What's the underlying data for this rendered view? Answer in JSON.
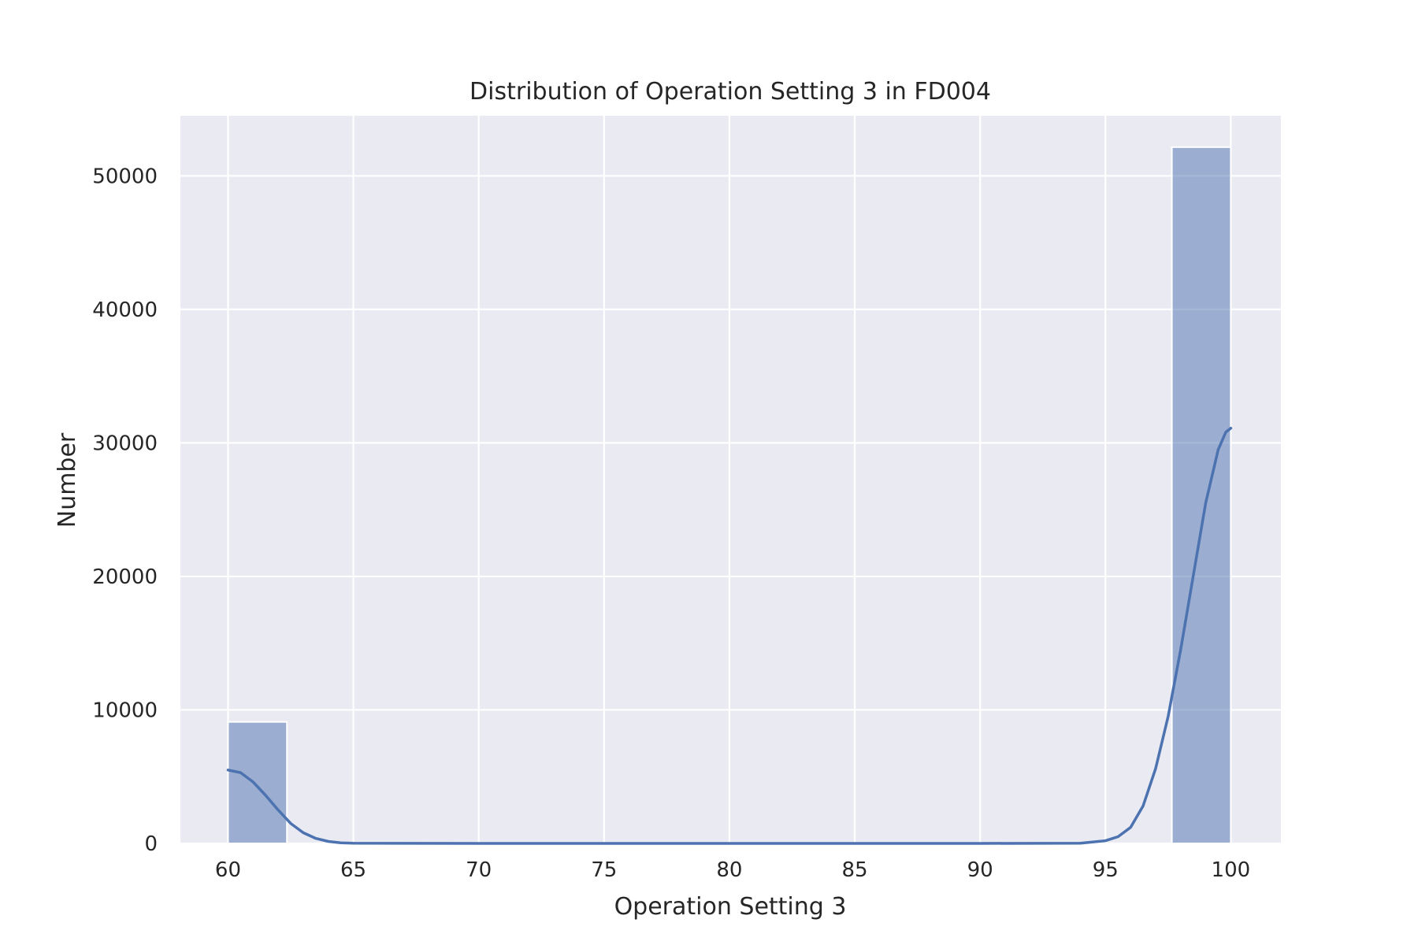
{
  "chart_data": {
    "type": "bar",
    "title": "Distribution of Operation Setting 3 in FD004",
    "xlabel": "Operation Setting 3",
    "ylabel": "Number",
    "xlim": [
      58.1,
      102.0
    ],
    "ylim": [
      0,
      54500
    ],
    "xticks": [
      60,
      65,
      70,
      75,
      80,
      85,
      90,
      95,
      100
    ],
    "xtick_labels": [
      "60",
      "65",
      "70",
      "75",
      "80",
      "85",
      "90",
      "95",
      "100"
    ],
    "yticks": [
      0,
      10000,
      20000,
      30000,
      40000,
      50000
    ],
    "ytick_labels": [
      "0",
      "10000",
      "20000",
      "30000",
      "40000",
      "50000"
    ],
    "grid": true,
    "bins": [
      {
        "x0": 60,
        "x1": 62.35,
        "count": 9100
      },
      {
        "x0": 97.65,
        "x1": 100,
        "count": 52150
      }
    ],
    "kde": {
      "x": [
        60,
        60.5,
        61,
        61.5,
        62,
        62.5,
        63,
        63.5,
        64,
        64.5,
        65,
        70,
        75,
        80,
        85,
        90,
        94,
        95,
        95.5,
        96,
        96.5,
        97,
        97.5,
        98,
        98.5,
        99,
        99.5,
        99.8,
        100
      ],
      "y": [
        5500,
        5300,
        4600,
        3600,
        2500,
        1500,
        800,
        380,
        150,
        50,
        10,
        0,
        0,
        0,
        0,
        0,
        20,
        200,
        500,
        1200,
        2800,
        5600,
        9500,
        14500,
        20000,
        25500,
        29500,
        30800,
        31100
      ]
    },
    "colors": {
      "plot_background": "#eaeaf2",
      "grid": "#ffffff",
      "bar_fill": "#4c72b0",
      "kde_line": "#4c72b0",
      "text": "#262626"
    }
  }
}
